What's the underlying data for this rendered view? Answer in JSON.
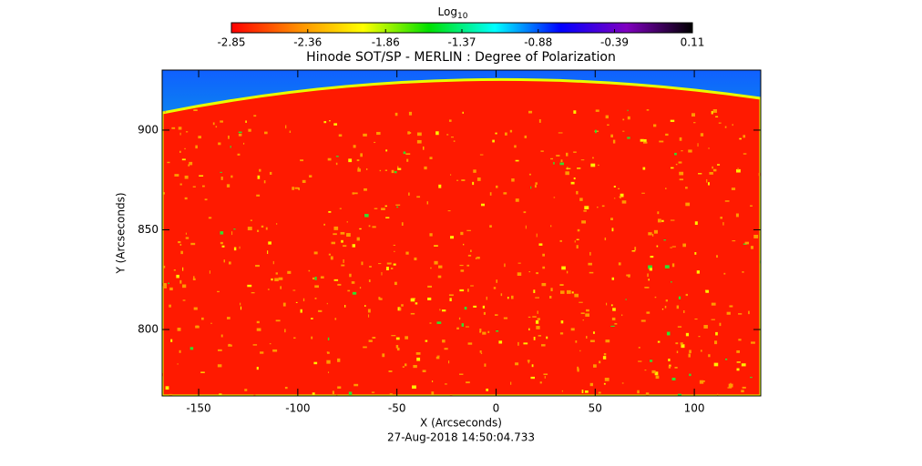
{
  "chart_data": {
    "type": "image",
    "title": "Hinode SOT/SP - MERLIN : Degree of Polarization",
    "footnote": "27-Aug-2018 14:50:04.733",
    "x_label": "X (Arcseconds)",
    "y_label": "Y (Arcseconds)",
    "xlim": [
      -168.4,
      133.5
    ],
    "ylim": [
      766.7,
      930.1
    ],
    "xticks": [
      -150,
      -100,
      -50,
      0,
      50,
      100
    ],
    "yticks": [
      800,
      850,
      900
    ],
    "colorbar": {
      "label": "Log",
      "label_subscript": "10",
      "lim": [
        -2.85,
        0.11
      ],
      "ticks": [
        -2.85,
        -2.36,
        -1.86,
        -1.37,
        -0.88,
        -0.39,
        0.11
      ],
      "colors": [
        "#ff0000",
        "#ff8c00",
        "#ffff00",
        "#00e000",
        "#00ffff",
        "#0000ff",
        "#8000c0",
        "#000000"
      ]
    }
  }
}
